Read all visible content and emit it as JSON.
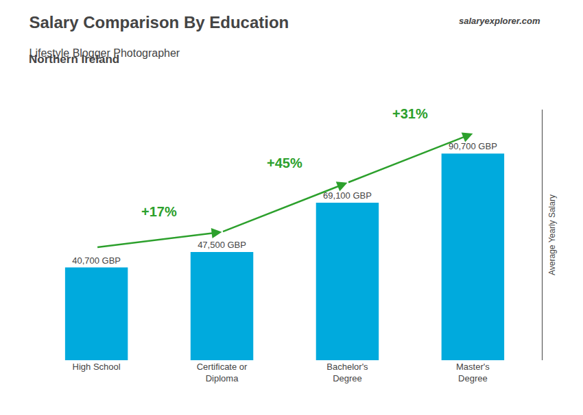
{
  "chart_data": {
    "type": "bar",
    "title": "Salary Comparison By Education",
    "subtitle": "Lifestyle Blogger Photographer",
    "location": "Northern Ireland",
    "watermark": "salaryexplorer.com",
    "ylabel": "Average Yearly Salary",
    "categories": [
      "High School",
      "Certificate or\nDiploma",
      "Bachelor's\nDegree",
      "Master's\nDegree"
    ],
    "values": [
      40700,
      47500,
      69100,
      90700
    ],
    "value_labels": [
      "40,700 GBP",
      "47,500 GBP",
      "69,100 GBP",
      "90,700 GBP"
    ],
    "data_labels": true,
    "color": "#00aadd",
    "ylim": [
      0,
      110000
    ],
    "grid": false,
    "tick_labels": "x",
    "annotations": [
      "+17%",
      "+45%",
      "+31%"
    ]
  }
}
